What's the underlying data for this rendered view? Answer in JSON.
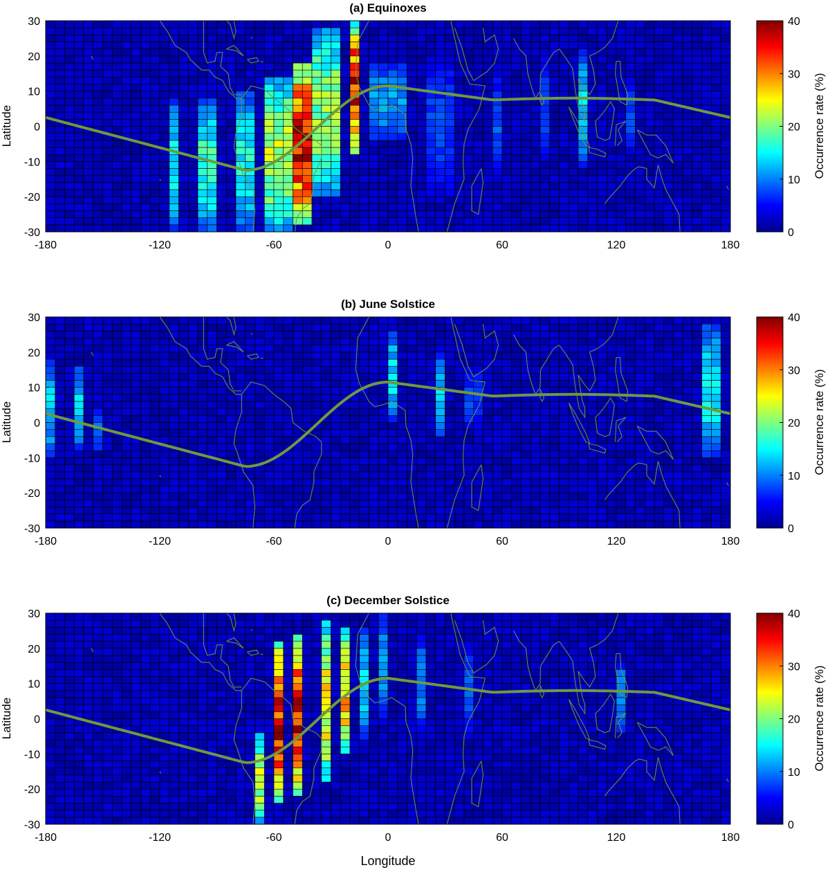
{
  "figure": {
    "xlabel": "Longitude",
    "ylabel": "Latitude",
    "colorbar_label": "Occurrence rate (%)"
  },
  "chart_data": [
    {
      "type": "heatmap",
      "title": "(a)   Equinoxes",
      "xlabel": "Longitude",
      "ylabel": "Latitude",
      "xlim": [
        -180,
        180
      ],
      "ylim": [
        -30,
        30
      ],
      "xticks": [
        -180,
        -120,
        -60,
        0,
        60,
        120,
        180
      ],
      "yticks": [
        -30,
        -20,
        -10,
        0,
        10,
        20,
        30
      ],
      "cell_size_deg": {
        "lon": 5,
        "lat": 2
      },
      "colorbar": {
        "label": "Occurrence rate (%)",
        "range": [
          0,
          40
        ],
        "ticks": [
          0,
          10,
          20,
          30,
          40
        ],
        "colormap": "jet"
      },
      "overlay": "magnetic dip equator",
      "hotspots": [
        {
          "lon": [
            -115,
            -110
          ],
          "lat": [
            -30,
            8
          ],
          "peak": 16
        },
        {
          "lon": [
            -100,
            -88
          ],
          "lat": [
            -30,
            8
          ],
          "peak": 18
        },
        {
          "lon": [
            -80,
            -70
          ],
          "lat": [
            -30,
            10
          ],
          "peak": 16
        },
        {
          "lon": [
            -65,
            -50
          ],
          "lat": [
            -30,
            14
          ],
          "peak": 24
        },
        {
          "lon": [
            -50,
            -40
          ],
          "lat": [
            -28,
            18
          ],
          "peak": 39
        },
        {
          "lon": [
            -40,
            -25
          ],
          "lat": [
            -20,
            28
          ],
          "peak": 22
        },
        {
          "lon": [
            -20,
            -15
          ],
          "lat": [
            -8,
            30
          ],
          "peak": 38
        },
        {
          "lon": [
            -10,
            10
          ],
          "lat": [
            -4,
            18
          ],
          "peak": 12
        },
        {
          "lon": [
            20,
            35
          ],
          "lat": [
            -20,
            20
          ],
          "peak": 8
        },
        {
          "lon": [
            55,
            60
          ],
          "lat": [
            -15,
            15
          ],
          "peak": 9
        },
        {
          "lon": [
            80,
            85
          ],
          "lat": [
            -10,
            20
          ],
          "peak": 8
        },
        {
          "lon": [
            100,
            105
          ],
          "lat": [
            -12,
            22
          ],
          "peak": 14
        },
        {
          "lon": [
            125,
            130
          ],
          "lat": [
            -8,
            14
          ],
          "peak": 8
        }
      ]
    },
    {
      "type": "heatmap",
      "title": "(b)   June Solstice",
      "xlabel": "Longitude",
      "ylabel": "Latitude",
      "xlim": [
        -180,
        180
      ],
      "ylim": [
        -30,
        30
      ],
      "xticks": [
        -180,
        -120,
        -60,
        0,
        60,
        120,
        180
      ],
      "yticks": [
        -30,
        -20,
        -10,
        0,
        10,
        20,
        30
      ],
      "cell_size_deg": {
        "lon": 5,
        "lat": 2
      },
      "colorbar": {
        "label": "Occurrence rate (%)",
        "range": [
          0,
          40
        ],
        "ticks": [
          0,
          10,
          20,
          30,
          40
        ],
        "colormap": "jet"
      },
      "overlay": "magnetic dip equator",
      "hotspots": [
        {
          "lon": [
            -180,
            -175
          ],
          "lat": [
            -10,
            18
          ],
          "peak": 14
        },
        {
          "lon": [
            -165,
            -160
          ],
          "lat": [
            -8,
            16
          ],
          "peak": 15
        },
        {
          "lon": [
            -155,
            -150
          ],
          "lat": [
            -8,
            4
          ],
          "peak": 10
        },
        {
          "lon": [
            0,
            5
          ],
          "lat": [
            0,
            26
          ],
          "peak": 15
        },
        {
          "lon": [
            25,
            30
          ],
          "lat": [
            -4,
            20
          ],
          "peak": 14
        },
        {
          "lon": [
            40,
            50
          ],
          "lat": [
            -2,
            16
          ],
          "peak": 8
        },
        {
          "lon": [
            165,
            175
          ],
          "lat": [
            -10,
            28
          ],
          "peak": 16
        }
      ]
    },
    {
      "type": "heatmap",
      "title": "(c)   December Solstice",
      "xlabel": "Longitude",
      "ylabel": "Latitude",
      "xlim": [
        -180,
        180
      ],
      "ylim": [
        -30,
        30
      ],
      "xticks": [
        -180,
        -120,
        -60,
        0,
        60,
        120,
        180
      ],
      "yticks": [
        -30,
        -20,
        -10,
        0,
        10,
        20,
        30
      ],
      "cell_size_deg": {
        "lon": 5,
        "lat": 2
      },
      "colorbar": {
        "label": "Occurrence rate (%)",
        "range": [
          0,
          40
        ],
        "ticks": [
          0,
          10,
          20,
          30,
          40
        ],
        "colormap": "jet"
      },
      "overlay": "magnetic dip equator",
      "hotspots": [
        {
          "lon": [
            -70,
            -65
          ],
          "lat": [
            -30,
            -4
          ],
          "peak": 25
        },
        {
          "lon": [
            -60,
            -55
          ],
          "lat": [
            -24,
            22
          ],
          "peak": 38
        },
        {
          "lon": [
            -50,
            -45
          ],
          "lat": [
            -22,
            24
          ],
          "peak": 39
        },
        {
          "lon": [
            -35,
            -30
          ],
          "lat": [
            -18,
            28
          ],
          "peak": 28
        },
        {
          "lon": [
            -25,
            -20
          ],
          "lat": [
            -10,
            26
          ],
          "peak": 30
        },
        {
          "lon": [
            -15,
            -10
          ],
          "lat": [
            -6,
            26
          ],
          "peak": 14
        },
        {
          "lon": [
            -5,
            0
          ],
          "lat": [
            0,
            30
          ],
          "peak": 12
        },
        {
          "lon": [
            15,
            20
          ],
          "lat": [
            -4,
            24
          ],
          "peak": 11
        },
        {
          "lon": [
            40,
            45
          ],
          "lat": [
            -6,
            22
          ],
          "peak": 9
        },
        {
          "lon": [
            120,
            125
          ],
          "lat": [
            -4,
            16
          ],
          "peak": 12
        }
      ]
    }
  ]
}
